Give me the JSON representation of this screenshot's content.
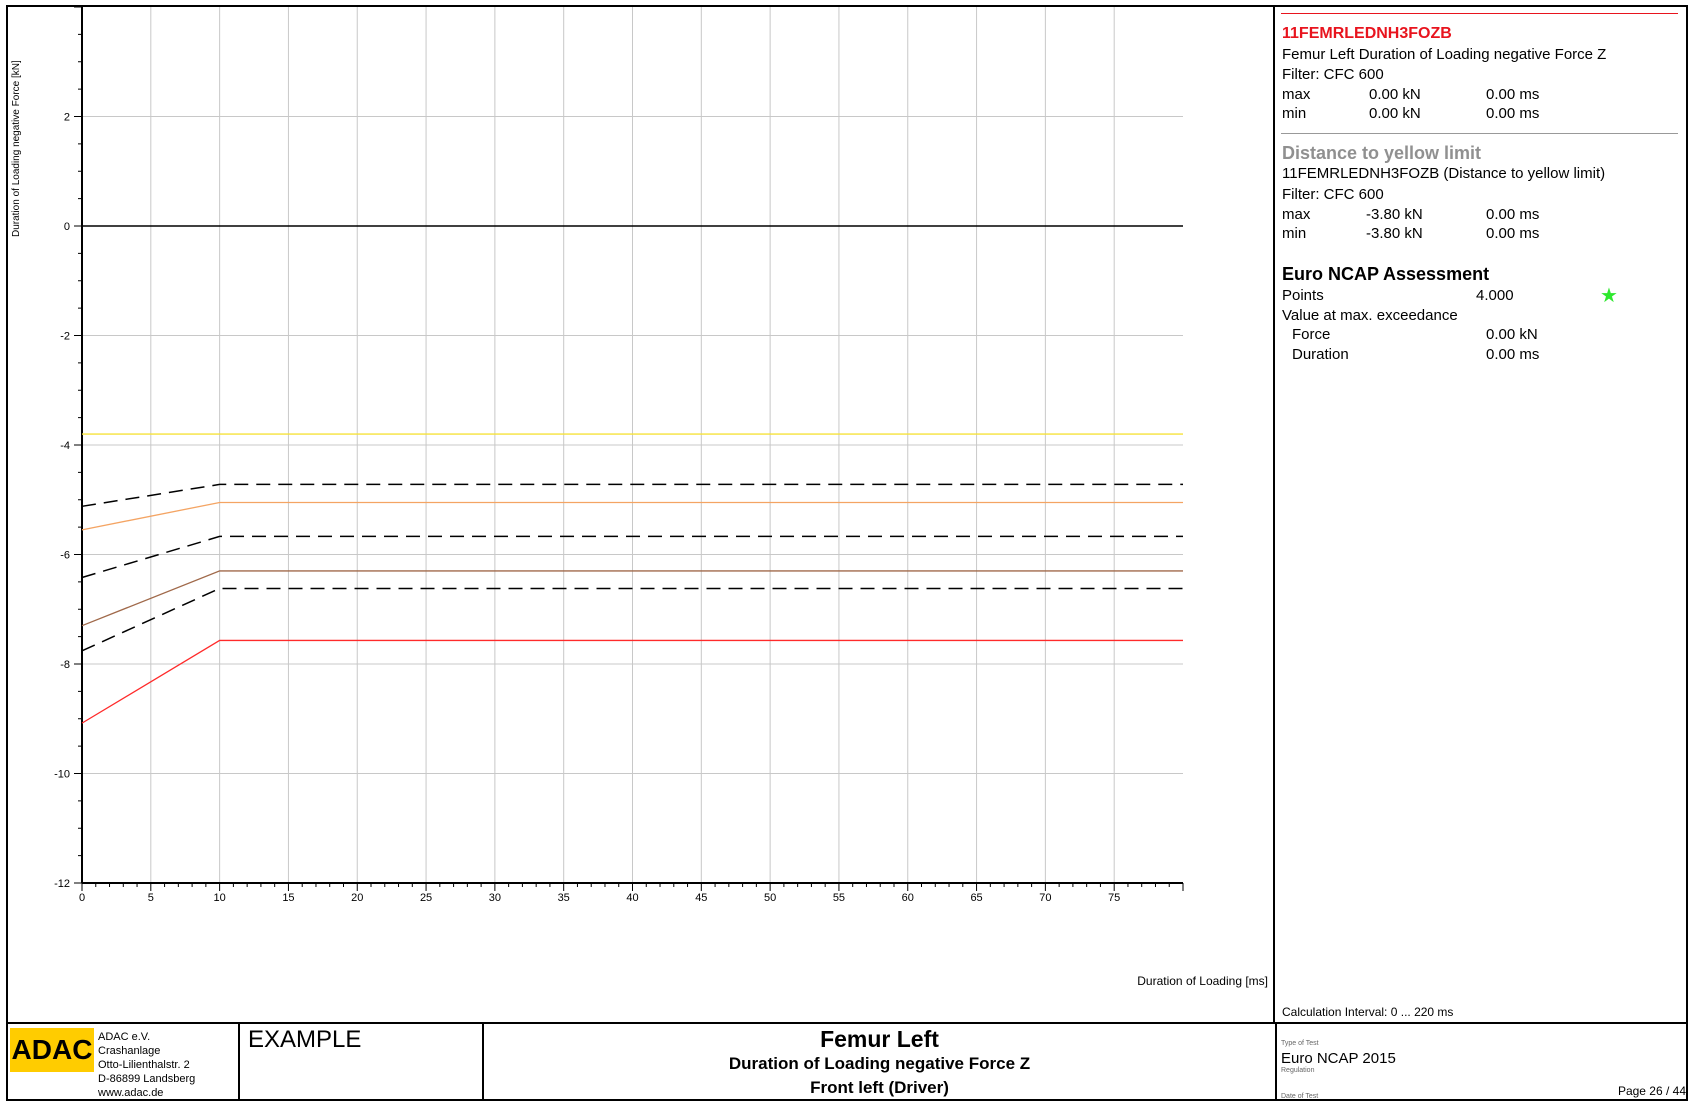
{
  "chart_data": {
    "type": "line",
    "title": "",
    "xlabel": "Duration of Loading  [ms]",
    "ylabel": "Duration of Loading negative Force  [kN]",
    "xlim": [
      0,
      80
    ],
    "ylim": [
      -12,
      4
    ],
    "xticks": [
      0,
      5,
      10,
      15,
      20,
      25,
      30,
      35,
      40,
      45,
      50,
      55,
      60,
      65,
      70,
      75
    ],
    "yticks": [
      -12,
      -10,
      -8,
      -6,
      -4,
      -2,
      0,
      2
    ],
    "grid": true,
    "legend": "none",
    "series": [
      {
        "color": "#f5e23a",
        "style": "solid",
        "x": [
          0,
          80
        ],
        "y": [
          -3.8,
          -3.8
        ]
      },
      {
        "color": "#000000",
        "style": "dashed",
        "x": [
          0,
          10,
          80
        ],
        "y": [
          -5.12,
          -4.72,
          -4.72
        ]
      },
      {
        "color": "#f4a463",
        "style": "solid",
        "x": [
          0,
          10,
          80
        ],
        "y": [
          -5.55,
          -5.05,
          -5.05
        ]
      },
      {
        "color": "#000000",
        "style": "dashed",
        "x": [
          0,
          10,
          80
        ],
        "y": [
          -6.42,
          -5.67,
          -5.67
        ]
      },
      {
        "color": "#a0694a",
        "style": "solid",
        "x": [
          0,
          10,
          80
        ],
        "y": [
          -7.3,
          -6.3,
          -6.3
        ]
      },
      {
        "color": "#000000",
        "style": "dashed",
        "x": [
          0,
          10,
          80
        ],
        "y": [
          -7.76,
          -6.62,
          -6.62
        ]
      },
      {
        "color": "#ff2a2a",
        "style": "solid",
        "x": [
          0,
          10,
          80
        ],
        "y": [
          -9.08,
          -7.57,
          -7.57
        ]
      }
    ]
  },
  "panel": {
    "channel": {
      "code": "11FEMRLEDNH3FOZB",
      "name": "Femur Left Duration of Loading negative Force Z",
      "filter": "Filter:  CFC 600",
      "max_label": "max",
      "max_value": "0.00  kN",
      "max_time": "0.00  ms",
      "min_label": "min",
      "min_value": "0.00  kN",
      "min_time": "0.00  ms"
    },
    "distance": {
      "title": "Distance to yellow limit",
      "name": "11FEMRLEDNH3FOZB (Distance to yellow limit)",
      "filter": "Filter:  CFC 600",
      "max_label": "max",
      "max_value": "-3.80  kN",
      "max_time": "0.00  ms",
      "min_label": "min",
      "min_value": "-3.80  kN",
      "min_time": "0.00  ms"
    },
    "assessment": {
      "title": "Euro NCAP Assessment",
      "points_label": "Points",
      "points_value": "4.000",
      "star": "★",
      "star_color": "#2ee82e",
      "exceedance_label": "Value at max. exceedance",
      "force_label": "Force",
      "force_value": "0.00  kN",
      "duration_label": "Duration",
      "duration_value": "0.00  ms"
    },
    "calc_interval": "Calculation Interval: 0 ... 220 ms"
  },
  "footer": {
    "logo": "ADAC",
    "logo_color": "#ffcc00",
    "address": [
      "ADAC e.V.",
      "Crashanlage",
      "Otto-Lilienthalstr. 2",
      "D-86899 Landsberg",
      "www.adac.de"
    ],
    "example": "EXAMPLE",
    "title": "Femur Left",
    "subtitle": "Duration of Loading negative Force Z",
    "position": "Front left (Driver)",
    "type_label": "Type of Test",
    "test_type": "Euro NCAP 2015",
    "regulation_label": "Regulation",
    "date_label": "Date of Test",
    "page": "Page 26 / 44"
  }
}
